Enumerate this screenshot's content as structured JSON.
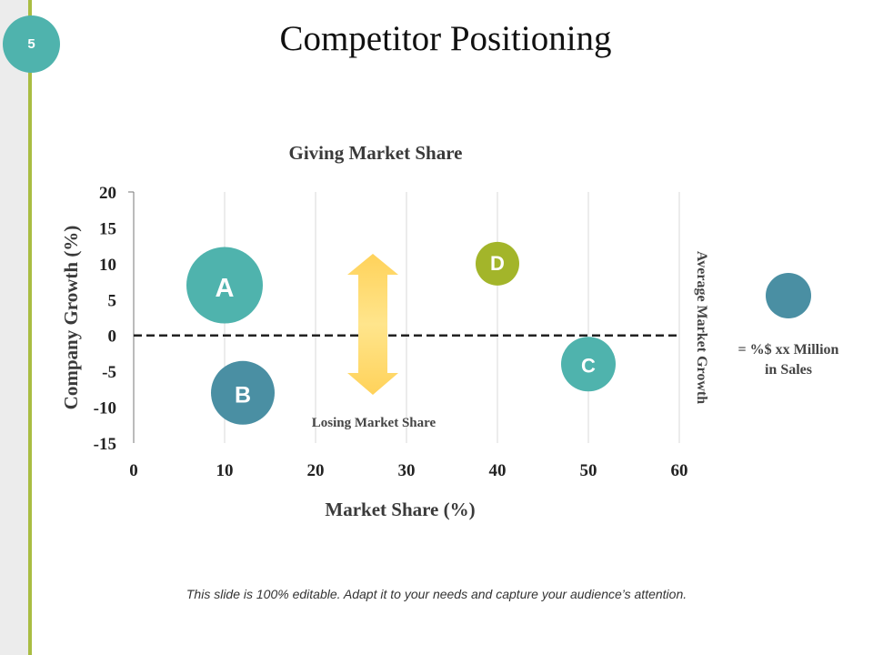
{
  "slide": {
    "number": "5",
    "title": "Competitor Positioning",
    "footer": "This slide is 100% editable. Adapt it to your needs and capture your audience’s attention."
  },
  "colors": {
    "accent_green": "#a9bd42",
    "teal": "#4fb3ad",
    "steel_blue": "#4a8fa3",
    "olive": "#a3b52a",
    "arrow_yellow": "#ffe07a"
  },
  "chart_data": {
    "type": "scatter",
    "subtype": "bubble",
    "title": "Giving Market Share",
    "xlabel": "Market Share (%)",
    "ylabel": "Company Growth (%)",
    "xlim": [
      0,
      60
    ],
    "ylim": [
      -15,
      20
    ],
    "x_ticks": [
      "0",
      "10",
      "20",
      "30",
      "40",
      "50",
      "60"
    ],
    "y_ticks": [
      "20",
      "15",
      "10",
      "5",
      "0",
      "-5",
      "-10",
      "-15"
    ],
    "grid": "vertical",
    "points": [
      {
        "label": "A",
        "x": 10,
        "y": 7,
        "size": 42,
        "color": "#4fb3ad"
      },
      {
        "label": "B",
        "x": 12,
        "y": -8,
        "size": 35,
        "color": "#4a8fa3"
      },
      {
        "label": "C",
        "x": 50,
        "y": -4,
        "size": 30,
        "color": "#4fb3ad"
      },
      {
        "label": "D",
        "x": 40,
        "y": 10,
        "size": 24,
        "color": "#a3b52a"
      }
    ],
    "reference_line": {
      "y": 0,
      "style": "dashed",
      "label": "Average Market Growth"
    },
    "bottom_note": "Losing Market Share",
    "legend": {
      "text_line1": "= %$ xx Million",
      "text_line2": "in Sales",
      "color": "#4a8fa3",
      "placement": "right"
    }
  }
}
